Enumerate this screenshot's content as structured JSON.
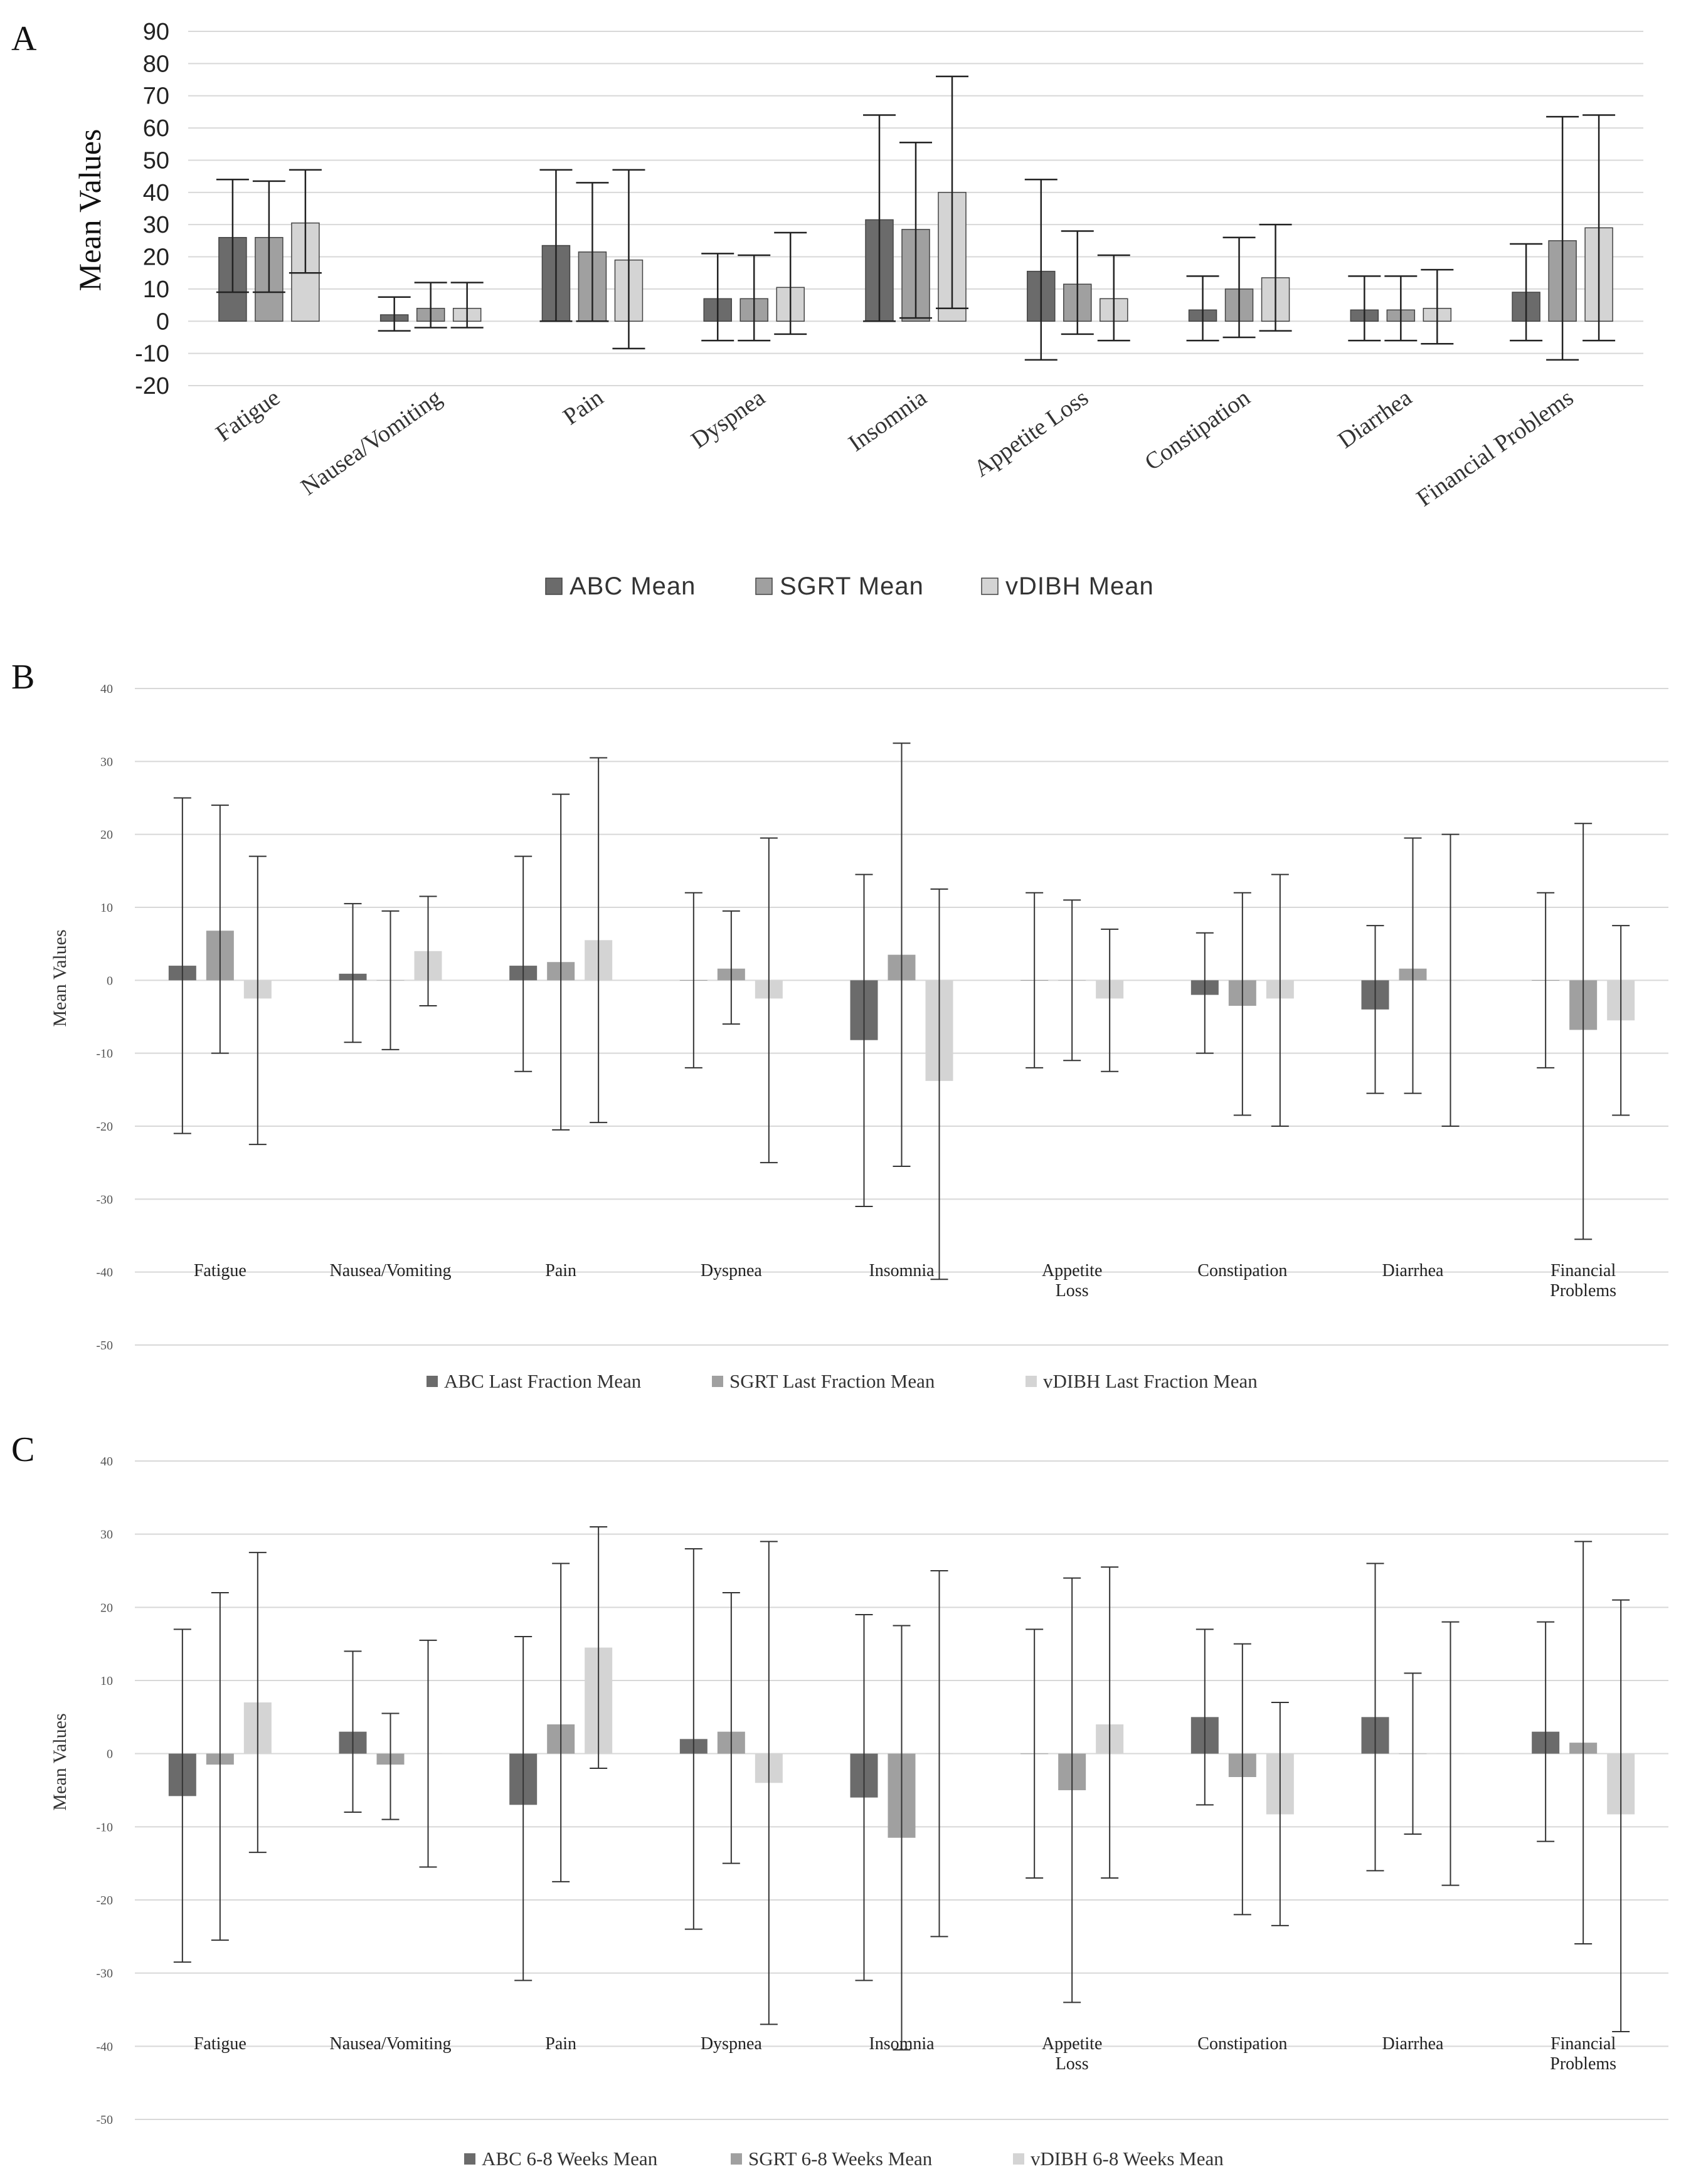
{
  "chart_data": [
    {
      "panel": "A",
      "type": "bar",
      "ylabel": "Mean Values",
      "ylim": [
        -20,
        90
      ],
      "yticks": [
        90,
        80,
        70,
        60,
        50,
        40,
        30,
        20,
        10,
        0,
        -10,
        -20
      ],
      "categories": [
        "Fatigue",
        "Nausea/Vomiting",
        "Pain",
        "Dyspnea",
        "Insomnia",
        "Appetite Loss",
        "Constipation",
        "Diarrhea",
        "Financial Problems"
      ],
      "series": [
        {
          "name": "ABC Mean",
          "color": "#6b6b6b",
          "values": [
            26,
            2,
            23.5,
            7,
            31.5,
            15.5,
            3.5,
            3.5,
            9
          ],
          "err_low": [
            9,
            -3,
            0,
            -6,
            0,
            -12,
            -6,
            -6,
            -6
          ],
          "err_high": [
            44,
            7.5,
            47,
            21,
            64,
            44,
            14,
            14,
            24
          ]
        },
        {
          "name": "SGRT Mean",
          "color": "#a0a0a0",
          "values": [
            26,
            4,
            21.5,
            7,
            28.5,
            11.5,
            10,
            3.5,
            25
          ],
          "err_low": [
            9,
            -2,
            0,
            -6,
            1,
            -4,
            -5,
            -6,
            -12
          ],
          "err_high": [
            43.5,
            12,
            43,
            20.5,
            55.5,
            28,
            26,
            14,
            63.5
          ]
        },
        {
          "name": "vDIBH Mean",
          "color": "#d4d4d4",
          "values": [
            30.5,
            4,
            19,
            10.5,
            40,
            7,
            13.5,
            4,
            29
          ],
          "err_low": [
            15,
            -2,
            -8.5,
            -4,
            4,
            -6,
            -3,
            -7,
            -6
          ],
          "err_high": [
            47,
            12,
            47,
            27.5,
            76,
            20.5,
            30,
            16,
            64
          ]
        }
      ]
    },
    {
      "panel": "B",
      "type": "bar",
      "ylabel": "Mean Values",
      "ylim": [
        -50,
        40
      ],
      "yticks": [
        40,
        30,
        20,
        10,
        0,
        -10,
        -20,
        -30,
        -40,
        -50
      ],
      "categories": [
        "Fatigue",
        "Nausea/Vomiting",
        "Pain",
        "Dyspnea",
        "Insomnia",
        [
          "Appetite",
          "Loss"
        ],
        "Constipation",
        "Diarrhea",
        [
          "Financial",
          "Problems"
        ]
      ],
      "series": [
        {
          "name": "ABC Last Fraction Mean",
          "color": "#6b6b6b",
          "values": [
            2,
            0.9,
            2,
            0,
            -8.2,
            0,
            -2,
            -4,
            0
          ],
          "err_low": [
            -21,
            -8.5,
            -12.5,
            -12,
            -31,
            -12,
            -10,
            -15.5,
            -12
          ],
          "err_high": [
            25,
            10.5,
            17,
            12,
            14.5,
            12,
            6.5,
            7.5,
            12
          ]
        },
        {
          "name": "SGRT Last Fraction Mean",
          "color": "#a0a0a0",
          "values": [
            6.8,
            0,
            2.5,
            1.6,
            3.5,
            0,
            -3.5,
            1.6,
            -6.8
          ],
          "err_low": [
            -10,
            -9.5,
            -20.5,
            -6,
            -25.5,
            -11,
            -18.5,
            -15.5,
            -35.5
          ],
          "err_high": [
            24,
            9.5,
            25.5,
            9.5,
            32.5,
            11,
            12,
            19.5,
            21.5
          ]
        },
        {
          "name": "vDIBH Last Fraction Mean",
          "color": "#d4d4d4",
          "values": [
            -2.5,
            4,
            5.5,
            -2.5,
            -13.8,
            -2.5,
            -2.5,
            0,
            -5.5
          ],
          "err_low": [
            -22.5,
            -3.5,
            -19.5,
            -25,
            -41,
            -12.5,
            -20,
            -20,
            -18.5
          ],
          "err_high": [
            17,
            11.5,
            30.5,
            19.5,
            12.5,
            7,
            14.5,
            20,
            7.5
          ]
        }
      ]
    },
    {
      "panel": "C",
      "type": "bar",
      "ylabel": "Mean Values",
      "ylim": [
        -50,
        40
      ],
      "yticks": [
        40,
        30,
        20,
        10,
        0,
        -10,
        -20,
        -30,
        -40,
        -50
      ],
      "categories": [
        "Fatigue",
        "Nausea/Vomiting",
        "Pain",
        "Dyspnea",
        "Insomnia",
        [
          "Appetite",
          "Loss"
        ],
        "Constipation",
        "Diarrhea",
        [
          "Financial",
          "Problems"
        ]
      ],
      "series": [
        {
          "name": "ABC 6-8 Weeks Mean",
          "color": "#6b6b6b",
          "values": [
            -5.8,
            3,
            -7,
            2,
            -6,
            0,
            5,
            5,
            3
          ],
          "err_low": [
            -28.5,
            -8,
            -31,
            -24,
            -31,
            -17,
            -7,
            -16,
            -12
          ],
          "err_high": [
            17,
            14,
            16,
            28,
            19,
            17,
            17,
            26,
            18
          ]
        },
        {
          "name": "SGRT 6-8 Weeks Mean",
          "color": "#a0a0a0",
          "values": [
            -1.5,
            -1.5,
            4,
            3,
            -11.5,
            -5,
            -3.2,
            0,
            1.5
          ],
          "err_low": [
            -25.5,
            -9,
            -17.5,
            -15,
            -40.5,
            -34,
            -22,
            -11,
            -26
          ],
          "err_high": [
            22,
            5.5,
            26,
            22,
            17.5,
            24,
            15,
            11,
            29
          ]
        },
        {
          "name": "vDIBH 6-8 Weeks Mean",
          "color": "#d4d4d4",
          "values": [
            7,
            0,
            14.5,
            -4,
            0,
            4,
            -8.3,
            0,
            -8.3
          ],
          "err_low": [
            -13.5,
            -15.5,
            -2,
            -37,
            -25,
            -17,
            -23.5,
            -18,
            -38
          ],
          "err_high": [
            27.5,
            15.5,
            31,
            29,
            25,
            25.5,
            7,
            18,
            21
          ]
        }
      ]
    }
  ],
  "labels": {
    "panel_a": "A",
    "panel_b": "B",
    "panel_c": "C"
  }
}
